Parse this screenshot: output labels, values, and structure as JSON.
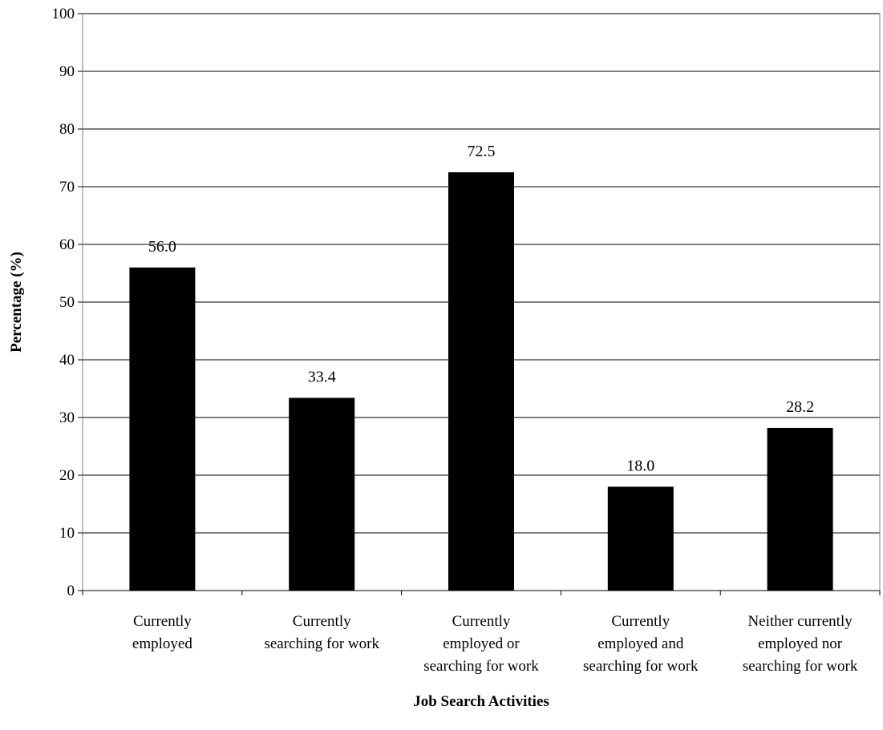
{
  "chart_data": {
    "type": "bar",
    "title": "",
    "xlabel": "Job Search Activities",
    "ylabel": "Percentage (%)",
    "ylim": [
      0,
      100
    ],
    "yticks": [
      0,
      10,
      20,
      30,
      40,
      50,
      60,
      70,
      80,
      90,
      100
    ],
    "grid": true,
    "legend": "none",
    "bar_color": "#000000",
    "categories": [
      [
        "Currently",
        "employed"
      ],
      [
        "Currently",
        "searching for work"
      ],
      [
        "Currently",
        "employed or",
        "searching for work"
      ],
      [
        "Currently",
        "employed and",
        "searching for work"
      ],
      [
        "Neither currently",
        "employed nor",
        "searching for work"
      ]
    ],
    "values": [
      56.0,
      33.4,
      72.5,
      18.0,
      28.2
    ],
    "data_labels": [
      "56.0",
      "33.4",
      "72.5",
      "18.0",
      "28.2"
    ]
  }
}
